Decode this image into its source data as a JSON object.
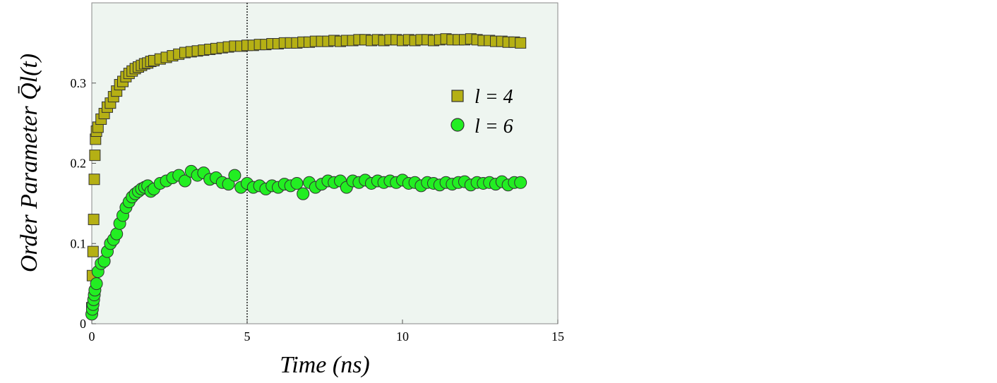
{
  "chart_data": {
    "type": "scatter",
    "xlabel": "Time (ns)",
    "ylabel": "Order Parameter Q̄l(t)",
    "xlim": [
      0,
      15
    ],
    "ylim": [
      0,
      0.4
    ],
    "xticks": [
      0,
      5,
      10,
      15
    ],
    "yticks": [
      0,
      0.1,
      0.2,
      0.3
    ],
    "ytick_labels": [
      "0",
      "0.1",
      "0.2",
      "0.3"
    ],
    "grid": false,
    "legend_placement": "right",
    "background_color": "#eef5f0",
    "vline": {
      "x": 5,
      "style": "dotted"
    },
    "series": [
      {
        "name": "l = 4",
        "marker": "square",
        "color": "#b5b014",
        "x": [
          0.0,
          0.02,
          0.04,
          0.06,
          0.08,
          0.1,
          0.12,
          0.15,
          0.2,
          0.3,
          0.4,
          0.5,
          0.6,
          0.7,
          0.8,
          0.9,
          1.0,
          1.1,
          1.2,
          1.3,
          1.4,
          1.5,
          1.6,
          1.7,
          1.8,
          1.9,
          2.0,
          2.2,
          2.4,
          2.6,
          2.8,
          3.0,
          3.2,
          3.4,
          3.6,
          3.8,
          4.0,
          4.2,
          4.4,
          4.6,
          4.8,
          5.0,
          5.2,
          5.4,
          5.6,
          5.8,
          6.0,
          6.2,
          6.4,
          6.6,
          6.8,
          7.0,
          7.2,
          7.4,
          7.6,
          7.8,
          8.0,
          8.2,
          8.4,
          8.6,
          8.8,
          9.0,
          9.2,
          9.4,
          9.6,
          9.8,
          10.0,
          10.2,
          10.4,
          10.6,
          10.8,
          11.0,
          11.2,
          11.4,
          11.6,
          11.8,
          12.0,
          12.2,
          12.4,
          12.6,
          12.8,
          13.0,
          13.2,
          13.4,
          13.6,
          13.8
        ],
        "y": [
          0.02,
          0.06,
          0.09,
          0.13,
          0.18,
          0.21,
          0.23,
          0.24,
          0.245,
          0.255,
          0.262,
          0.27,
          0.275,
          0.283,
          0.29,
          0.298,
          0.302,
          0.308,
          0.312,
          0.315,
          0.318,
          0.32,
          0.322,
          0.324,
          0.325,
          0.327,
          0.328,
          0.33,
          0.332,
          0.334,
          0.336,
          0.338,
          0.339,
          0.34,
          0.341,
          0.342,
          0.343,
          0.344,
          0.345,
          0.346,
          0.346,
          0.347,
          0.347,
          0.348,
          0.348,
          0.349,
          0.349,
          0.35,
          0.35,
          0.35,
          0.351,
          0.351,
          0.352,
          0.352,
          0.352,
          0.353,
          0.352,
          0.353,
          0.353,
          0.354,
          0.354,
          0.353,
          0.354,
          0.353,
          0.354,
          0.354,
          0.353,
          0.354,
          0.353,
          0.354,
          0.354,
          0.353,
          0.354,
          0.355,
          0.354,
          0.354,
          0.354,
          0.355,
          0.354,
          0.353,
          0.353,
          0.352,
          0.352,
          0.351,
          0.351,
          0.35
        ]
      },
      {
        "name": "l = 6",
        "marker": "circle",
        "color": "#22ee22",
        "x": [
          0.0,
          0.02,
          0.04,
          0.06,
          0.08,
          0.1,
          0.15,
          0.2,
          0.3,
          0.4,
          0.5,
          0.6,
          0.7,
          0.8,
          0.9,
          1.0,
          1.1,
          1.2,
          1.3,
          1.4,
          1.5,
          1.6,
          1.7,
          1.8,
          1.9,
          2.0,
          2.2,
          2.4,
          2.6,
          2.8,
          3.0,
          3.2,
          3.4,
          3.6,
          3.8,
          4.0,
          4.2,
          4.4,
          4.6,
          4.8,
          5.0,
          5.2,
          5.4,
          5.6,
          5.8,
          6.0,
          6.2,
          6.4,
          6.6,
          6.8,
          7.0,
          7.2,
          7.4,
          7.6,
          7.8,
          8.0,
          8.2,
          8.4,
          8.6,
          8.8,
          9.0,
          9.2,
          9.4,
          9.6,
          9.8,
          10.0,
          10.2,
          10.4,
          10.6,
          10.8,
          11.0,
          11.2,
          11.4,
          11.6,
          11.8,
          12.0,
          12.2,
          12.4,
          12.6,
          12.8,
          13.0,
          13.2,
          13.4,
          13.6,
          13.8
        ],
        "y": [
          0.012,
          0.018,
          0.024,
          0.03,
          0.036,
          0.042,
          0.05,
          0.065,
          0.075,
          0.078,
          0.09,
          0.1,
          0.105,
          0.112,
          0.125,
          0.135,
          0.145,
          0.152,
          0.158,
          0.162,
          0.165,
          0.168,
          0.17,
          0.172,
          0.165,
          0.168,
          0.175,
          0.178,
          0.182,
          0.185,
          0.178,
          0.19,
          0.185,
          0.188,
          0.18,
          0.182,
          0.176,
          0.174,
          0.185,
          0.17,
          0.175,
          0.17,
          0.172,
          0.168,
          0.172,
          0.17,
          0.174,
          0.172,
          0.175,
          0.162,
          0.176,
          0.17,
          0.174,
          0.178,
          0.176,
          0.178,
          0.17,
          0.178,
          0.176,
          0.179,
          0.175,
          0.178,
          0.176,
          0.178,
          0.176,
          0.179,
          0.175,
          0.176,
          0.172,
          0.176,
          0.175,
          0.173,
          0.176,
          0.174,
          0.176,
          0.177,
          0.173,
          0.176,
          0.175,
          0.176,
          0.174,
          0.177,
          0.173,
          0.176,
          0.176
        ]
      }
    ]
  }
}
